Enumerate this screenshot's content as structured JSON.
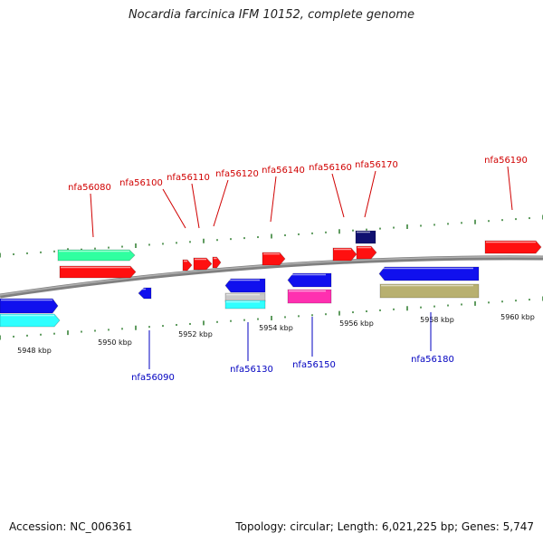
{
  "title": "Nocardia farcinica IFM 10152, complete genome",
  "footer": {
    "accession": "Accession: NC_006361",
    "summary": "Topology: circular; Length: 6,021,225 bp; Genes: 5,747"
  },
  "colors": {
    "backbone": "#808080",
    "tick": "#2a7a2a",
    "label_top": "#d00000",
    "label_bottom": "#0000c0",
    "gene_red": "#ff1010",
    "gene_blue": "#1010ee",
    "gene_navy": "#101070",
    "gene_cyan": "#30ffff",
    "gene_green": "#30ffa0",
    "gene_magenta": "#ff30b0",
    "gene_olive": "#b8b070",
    "gene_grey": "#c8c8c8"
  },
  "scale": {
    "labels": [
      "5948 kbp",
      "5950 kbp",
      "5952 kbp",
      "5954 kbp",
      "5956 kbp",
      "5958 kbp",
      "5960 kbp"
    ]
  },
  "gene_labels_top": [
    "nfa56080",
    "nfa56100",
    "nfa56110",
    "nfa56120",
    "nfa56140",
    "nfa56160",
    "nfa56170",
    "nfa56190"
  ],
  "gene_labels_bottom": [
    "nfa56090",
    "nfa56130",
    "nfa56150",
    "nfa56180"
  ]
}
